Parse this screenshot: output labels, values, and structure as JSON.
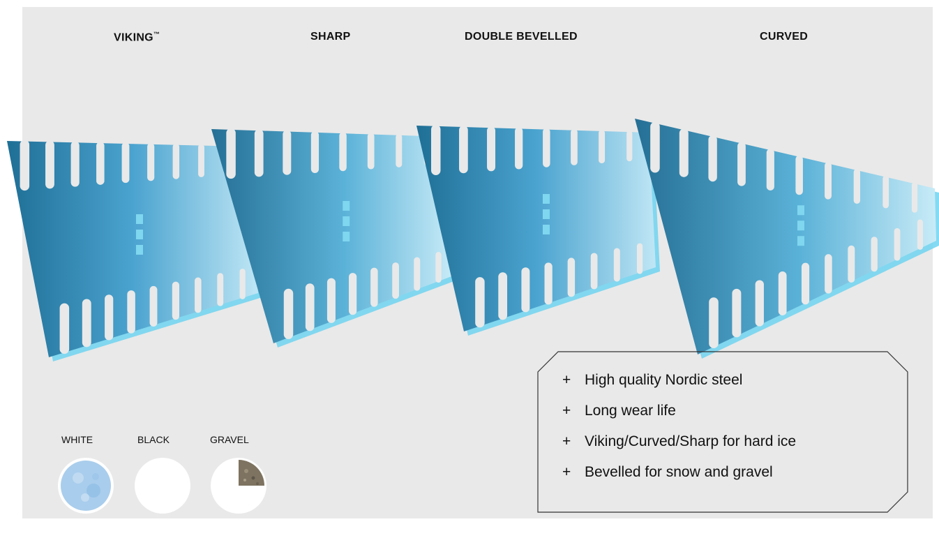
{
  "blade_types": [
    {
      "name": "VIKING",
      "trademark": "™"
    },
    {
      "name": "SHARP",
      "trademark": ""
    },
    {
      "name": "DOUBLE BEVELLED",
      "trademark": ""
    },
    {
      "name": "CURVED",
      "trademark": ""
    }
  ],
  "colors": {
    "blade_dark": "#1f6f96",
    "blade_mid": "#4aa3cf",
    "blade_light": "#bfe6f5",
    "blade_edge": "#6fd4f0",
    "panel_bg": "#e9e9e9"
  },
  "swatches": [
    {
      "label": "WHITE",
      "icon": "white-ice-texture-swatch"
    },
    {
      "label": "BLACK",
      "icon": "black-plain-swatch"
    },
    {
      "label": "GRAVEL",
      "icon": "gravel-texture-swatch"
    }
  ],
  "features": {
    "bullet": "+",
    "items": [
      "High quality Nordic steel",
      "Long wear life",
      "Viking/Curved/Sharp for hard ice",
      "Bevelled for snow and gravel"
    ]
  }
}
